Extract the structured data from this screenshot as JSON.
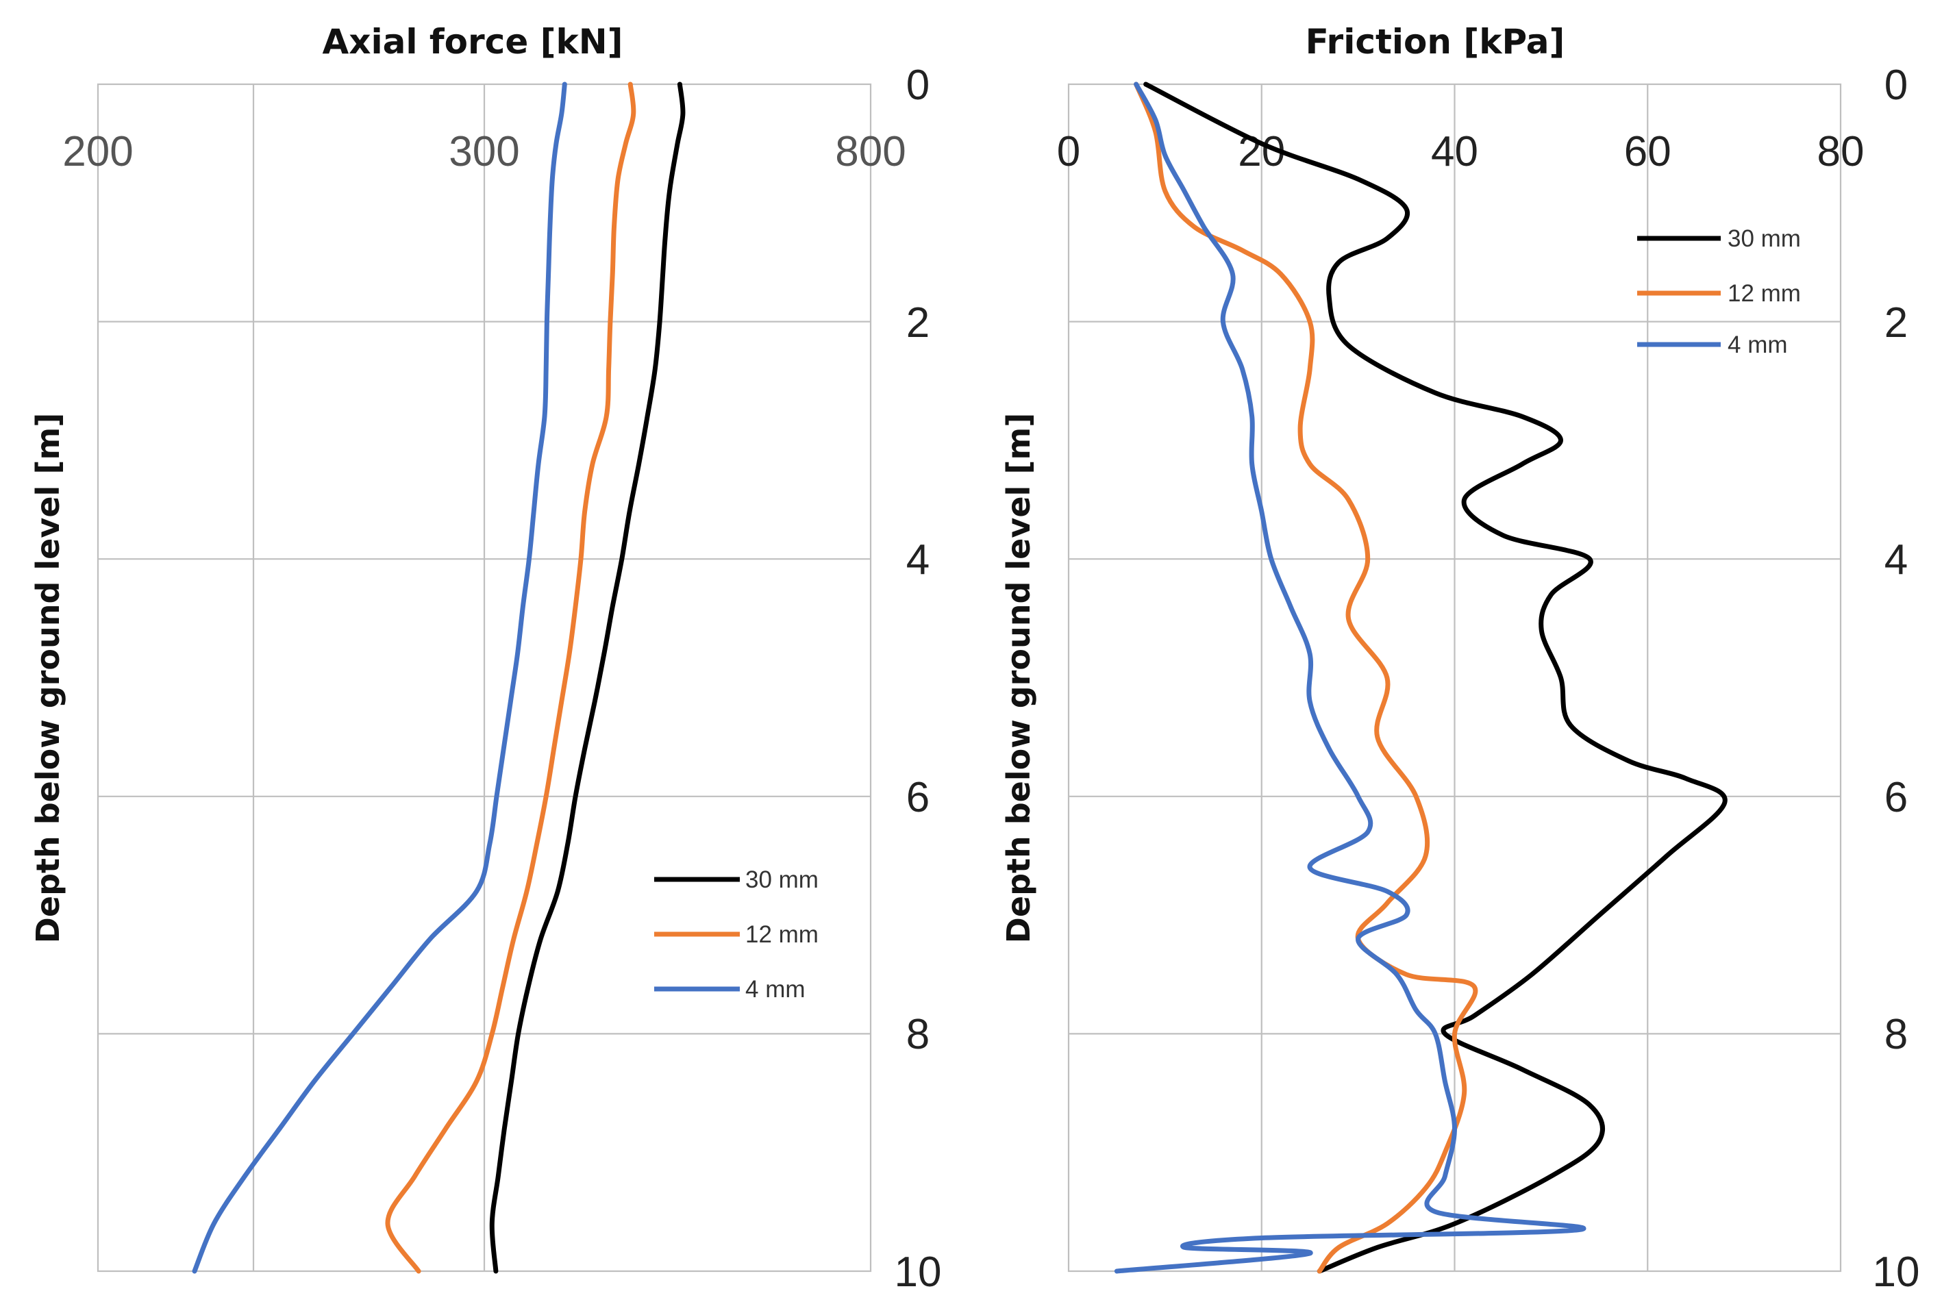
{
  "chart_data": [
    {
      "type": "line",
      "title": "Axial force [kN]",
      "xlabel": "Axial force [kN]",
      "ylabel": "Depth below ground level  [m]",
      "x_tick_labels": [
        "200",
        "300",
        "800"
      ],
      "x_ticks": [
        200,
        300,
        800
      ],
      "xlim": [
        200,
        800
      ],
      "ylim": [
        10,
        0
      ],
      "y_ticks": [
        0,
        2,
        4,
        6,
        8,
        10
      ],
      "y_tick_labels": [
        "0",
        "2",
        "4",
        "6",
        "8",
        "10"
      ],
      "grid": true,
      "legend_position": "center-right",
      "series": [
        {
          "name": "30 mm",
          "color": "#000000",
          "points": [
            [
              553,
              0
            ],
            [
              557,
              0.25
            ],
            [
              550,
              0.5
            ],
            [
              542,
              0.8
            ],
            [
              538,
              1.0
            ],
            [
              534,
              1.3
            ],
            [
              531,
              1.6
            ],
            [
              527,
              2.0
            ],
            [
              521,
              2.4
            ],
            [
              511,
              2.8
            ],
            [
              500,
              3.2
            ],
            [
              488,
              3.6
            ],
            [
              478,
              4.0
            ],
            [
              466,
              4.4
            ],
            [
              455,
              4.8
            ],
            [
              443,
              5.2
            ],
            [
              430,
              5.6
            ],
            [
              418,
              6.0
            ],
            [
              408,
              6.4
            ],
            [
              395,
              6.8
            ],
            [
              373,
              7.2
            ],
            [
              357,
              7.6
            ],
            [
              344,
              8.0
            ],
            [
              335,
              8.4
            ],
            [
              326,
              8.8
            ],
            [
              318,
              9.2
            ],
            [
              310,
              9.6
            ],
            [
              315,
              10.0
            ]
          ]
        },
        {
          "name": "12 mm",
          "color": "#ED7D31",
          "points": [
            [
              489,
              0
            ],
            [
              493,
              0.25
            ],
            [
              483,
              0.5
            ],
            [
              473,
              0.8
            ],
            [
              468,
              1.2
            ],
            [
              466,
              1.6
            ],
            [
              463,
              2.0
            ],
            [
              461,
              2.4
            ],
            [
              458,
              2.8
            ],
            [
              440,
              3.2
            ],
            [
              430,
              3.6
            ],
            [
              425,
              4.0
            ],
            [
              418,
              4.4
            ],
            [
              410,
              4.8
            ],
            [
              400,
              5.2
            ],
            [
              390,
              5.6
            ],
            [
              380,
              6.0
            ],
            [
              368,
              6.4
            ],
            [
              355,
              6.8
            ],
            [
              338,
              7.2
            ],
            [
              324,
              7.6
            ],
            [
              310,
              8.0
            ],
            [
              298,
              8.4
            ],
            [
              290,
              8.8
            ],
            [
              282,
              9.2
            ],
            [
              275,
              9.6
            ],
            [
              283,
              10.0
            ]
          ]
        },
        {
          "name": "4 mm",
          "color": "#4472C4",
          "points": [
            [
              404,
              0
            ],
            [
              400,
              0.25
            ],
            [
              393,
              0.5
            ],
            [
              388,
              0.8
            ],
            [
              385,
              1.2
            ],
            [
              383,
              1.6
            ],
            [
              381,
              2.0
            ],
            [
              380,
              2.4
            ],
            [
              378,
              2.8
            ],
            [
              370,
              3.2
            ],
            [
              364,
              3.6
            ],
            [
              358,
              4.0
            ],
            [
              350,
              4.4
            ],
            [
              343,
              4.8
            ],
            [
              334,
              5.2
            ],
            [
              325,
              5.6
            ],
            [
              316,
              6.0
            ],
            [
              307,
              6.4
            ],
            [
              298,
              6.8
            ],
            [
              286,
              7.2
            ],
            [
              276,
              7.6
            ],
            [
              266,
              8.0
            ],
            [
              256,
              8.4
            ],
            [
              247,
              8.8
            ],
            [
              238,
              9.2
            ],
            [
              230,
              9.6
            ],
            [
              225,
              10.0
            ]
          ]
        }
      ]
    },
    {
      "type": "line",
      "title": "Friction [kPa]",
      "xlabel": "Friction [kPa]",
      "ylabel": "Depth below ground level [m]",
      "x_tick_labels": [
        "0",
        "20",
        "40",
        "60",
        "80"
      ],
      "x_ticks": [
        0,
        20,
        40,
        60,
        80
      ],
      "xlim": [
        0,
        80
      ],
      "ylim": [
        10,
        0
      ],
      "y_ticks": [
        0,
        2,
        4,
        6,
        8,
        10
      ],
      "y_tick_labels": [
        "0",
        "2",
        "4",
        "6",
        "8",
        "10"
      ],
      "grid": true,
      "legend_position": "top-right",
      "series": [
        {
          "name": "30 mm",
          "color": "#000000",
          "points": [
            [
              8,
              0
            ],
            [
              20,
              0.5
            ],
            [
              30,
              0.8
            ],
            [
              35,
              1.05
            ],
            [
              33,
              1.3
            ],
            [
              28,
              1.5
            ],
            [
              27,
              1.8
            ],
            [
              29,
              2.2
            ],
            [
              38,
              2.6
            ],
            [
              47,
              2.8
            ],
            [
              51,
              3.0
            ],
            [
              47,
              3.2
            ],
            [
              41,
              3.5
            ],
            [
              45,
              3.8
            ],
            [
              54,
              4.0
            ],
            [
              50,
              4.3
            ],
            [
              49,
              4.6
            ],
            [
              51,
              5.0
            ],
            [
              52,
              5.4
            ],
            [
              58,
              5.7
            ],
            [
              64,
              5.85
            ],
            [
              68,
              6.05
            ],
            [
              62,
              6.5
            ],
            [
              55,
              7.0
            ],
            [
              48,
              7.5
            ],
            [
              42,
              7.85
            ],
            [
              39,
              8.0
            ],
            [
              47,
              8.3
            ],
            [
              54,
              8.6
            ],
            [
              55,
              8.9
            ],
            [
              50,
              9.2
            ],
            [
              40,
              9.6
            ],
            [
              32,
              9.8
            ],
            [
              26,
              10.0
            ]
          ]
        },
        {
          "name": "12 mm",
          "color": "#ED7D31",
          "points": [
            [
              7,
              0
            ],
            [
              9,
              0.4
            ],
            [
              10,
              0.9
            ],
            [
              13,
              1.2
            ],
            [
              18,
              1.4
            ],
            [
              22,
              1.6
            ],
            [
              25,
              2.0
            ],
            [
              25,
              2.4
            ],
            [
              24,
              2.9
            ],
            [
              25,
              3.2
            ],
            [
              29,
              3.5
            ],
            [
              31,
              4.0
            ],
            [
              29,
              4.5
            ],
            [
              33,
              5.0
            ],
            [
              32,
              5.5
            ],
            [
              36,
              6.0
            ],
            [
              37,
              6.5
            ],
            [
              33,
              6.9
            ],
            [
              30,
              7.2
            ],
            [
              35,
              7.5
            ],
            [
              42,
              7.6
            ],
            [
              40,
              8.0
            ],
            [
              41,
              8.5
            ],
            [
              39,
              9.0
            ],
            [
              37,
              9.3
            ],
            [
              33,
              9.6
            ],
            [
              28,
              9.8
            ],
            [
              26,
              10.0
            ]
          ]
        },
        {
          "name": "4 mm",
          "color": "#4472C4",
          "points": [
            [
              7,
              0
            ],
            [
              9,
              0.3
            ],
            [
              10,
              0.6
            ],
            [
              12,
              0.9
            ],
            [
              14,
              1.2
            ],
            [
              17,
              1.6
            ],
            [
              16,
              2.0
            ],
            [
              18,
              2.4
            ],
            [
              19,
              2.8
            ],
            [
              19,
              3.2
            ],
            [
              20,
              3.6
            ],
            [
              21,
              4.0
            ],
            [
              23,
              4.4
            ],
            [
              25,
              4.8
            ],
            [
              25,
              5.2
            ],
            [
              27,
              5.6
            ],
            [
              30,
              6.0
            ],
            [
              31,
              6.3
            ],
            [
              25,
              6.6
            ],
            [
              33,
              6.8
            ],
            [
              35,
              7.0
            ],
            [
              30,
              7.2
            ],
            [
              34,
              7.5
            ],
            [
              36,
              7.8
            ],
            [
              38,
              8.0
            ],
            [
              39,
              8.4
            ],
            [
              40,
              8.8
            ],
            [
              39,
              9.2
            ],
            [
              38,
              9.5
            ],
            [
              53,
              9.65
            ],
            [
              20,
              9.72
            ],
            [
              12,
              9.8
            ],
            [
              25,
              9.85
            ],
            [
              5,
              10.0
            ]
          ]
        }
      ]
    }
  ]
}
